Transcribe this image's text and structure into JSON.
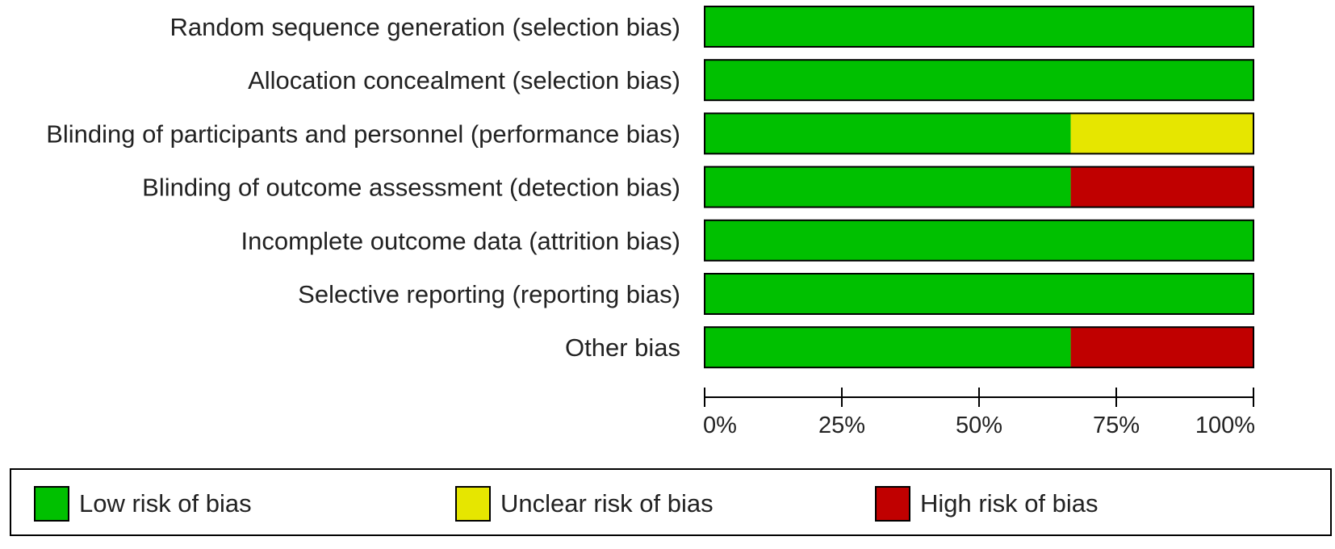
{
  "chart_data": {
    "type": "bar",
    "orientation": "horizontal",
    "stacked": true,
    "categories": [
      "Random sequence generation (selection bias)",
      "Allocation concealment (selection bias)",
      "Blinding of participants and personnel (performance bias)",
      "Blinding of outcome assessment (detection bias)",
      "Incomplete outcome data (attrition bias)",
      "Selective reporting (reporting bias)",
      "Other bias"
    ],
    "series": [
      {
        "name": "Low risk of bias",
        "color": "#00c000",
        "values": [
          100,
          100,
          66.7,
          66.7,
          100,
          100,
          66.7
        ]
      },
      {
        "name": "Unclear risk of bias",
        "color": "#e6e600",
        "values": [
          0,
          0,
          33.3,
          0,
          0,
          0,
          0
        ]
      },
      {
        "name": "High risk of bias",
        "color": "#c00000",
        "values": [
          0,
          0,
          0,
          33.3,
          0,
          0,
          33.3
        ]
      }
    ],
    "xlim": [
      0,
      100
    ],
    "xticks": [
      "0%",
      "25%",
      "50%",
      "75%",
      "100%"
    ],
    "legend_position": "bottom",
    "grid": false
  }
}
